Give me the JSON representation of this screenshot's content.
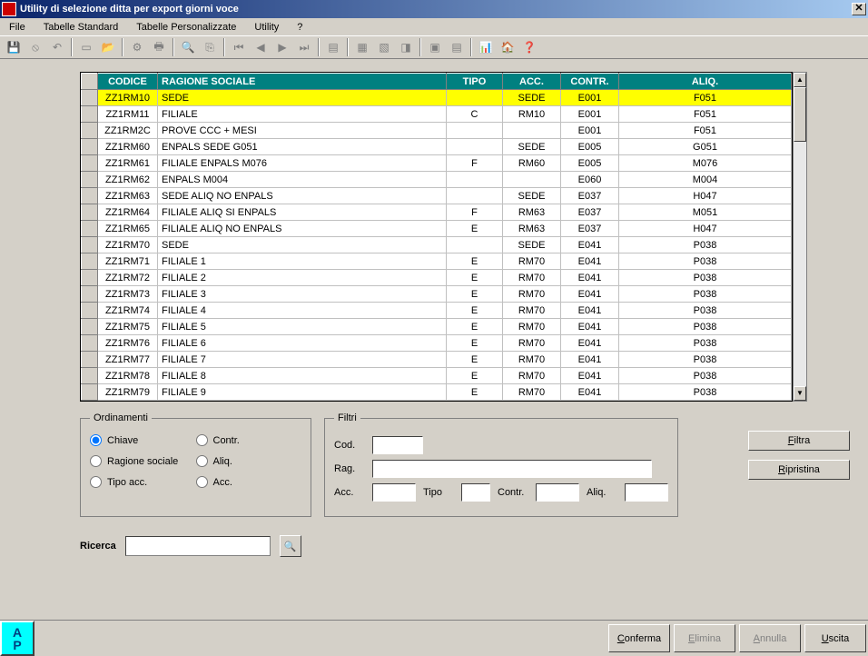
{
  "window": {
    "title": "Utility di selezione ditta per export giorni voce"
  },
  "menu": {
    "items": [
      "File",
      "Tabelle Standard",
      "Tabelle Personalizzate",
      "Utility",
      "?"
    ]
  },
  "columns": [
    "CODICE",
    "RAGIONE SOCIALE",
    "TIPO",
    "ACC.",
    "CONTR.",
    "ALIQ."
  ],
  "rows": [
    {
      "cod": "ZZ1RM10",
      "rag": "SEDE",
      "tipo": "",
      "acc": "SEDE",
      "contr": "E001",
      "aliq": "F051",
      "sel": true
    },
    {
      "cod": "ZZ1RM11",
      "rag": "FILIALE",
      "tipo": "C",
      "acc": "RM10",
      "contr": "E001",
      "aliq": "F051"
    },
    {
      "cod": "ZZ1RM2C",
      "rag": "PROVE CCC + MESI",
      "tipo": "",
      "acc": "",
      "contr": "E001",
      "aliq": "F051"
    },
    {
      "cod": "ZZ1RM60",
      "rag": "ENPALS SEDE G051",
      "tipo": "",
      "acc": "SEDE",
      "contr": "E005",
      "aliq": "G051"
    },
    {
      "cod": "ZZ1RM61",
      "rag": "FILIALE ENPALS M076",
      "tipo": "F",
      "acc": "RM60",
      "contr": "E005",
      "aliq": "M076"
    },
    {
      "cod": "ZZ1RM62",
      "rag": "ENPALS M004",
      "tipo": "",
      "acc": "",
      "contr": "E060",
      "aliq": "M004"
    },
    {
      "cod": "ZZ1RM63",
      "rag": "SEDE ALIQ NO ENPALS",
      "tipo": "",
      "acc": "SEDE",
      "contr": "E037",
      "aliq": "H047"
    },
    {
      "cod": "ZZ1RM64",
      "rag": "FILIALE ALIQ SI ENPALS",
      "tipo": "F",
      "acc": "RM63",
      "contr": "E037",
      "aliq": "M051"
    },
    {
      "cod": "ZZ1RM65",
      "rag": "FILIALE ALIQ NO ENPALS",
      "tipo": "E",
      "acc": "RM63",
      "contr": "E037",
      "aliq": "H047"
    },
    {
      "cod": "ZZ1RM70",
      "rag": "SEDE",
      "tipo": "",
      "acc": "SEDE",
      "contr": "E041",
      "aliq": "P038"
    },
    {
      "cod": "ZZ1RM71",
      "rag": "FILIALE 1",
      "tipo": "E",
      "acc": "RM70",
      "contr": "E041",
      "aliq": "P038"
    },
    {
      "cod": "ZZ1RM72",
      "rag": "FILIALE 2",
      "tipo": "E",
      "acc": "RM70",
      "contr": "E041",
      "aliq": "P038"
    },
    {
      "cod": "ZZ1RM73",
      "rag": "FILIALE 3",
      "tipo": "E",
      "acc": "RM70",
      "contr": "E041",
      "aliq": "P038"
    },
    {
      "cod": "ZZ1RM74",
      "rag": "FILIALE 4",
      "tipo": "E",
      "acc": "RM70",
      "contr": "E041",
      "aliq": "P038"
    },
    {
      "cod": "ZZ1RM75",
      "rag": "FILIALE 5",
      "tipo": "E",
      "acc": "RM70",
      "contr": "E041",
      "aliq": "P038"
    },
    {
      "cod": "ZZ1RM76",
      "rag": "FILIALE 6",
      "tipo": "E",
      "acc": "RM70",
      "contr": "E041",
      "aliq": "P038"
    },
    {
      "cod": "ZZ1RM77",
      "rag": "FILIALE 7",
      "tipo": "E",
      "acc": "RM70",
      "contr": "E041",
      "aliq": "P038"
    },
    {
      "cod": "ZZ1RM78",
      "rag": "FILIALE 8",
      "tipo": "E",
      "acc": "RM70",
      "contr": "E041",
      "aliq": "P038"
    },
    {
      "cod": "ZZ1RM79",
      "rag": "FILIALE 9",
      "tipo": "E",
      "acc": "RM70",
      "contr": "E041",
      "aliq": "P038"
    }
  ],
  "ordinamenti": {
    "legend": "Ordinamenti",
    "options": [
      "Chiave",
      "Contr.",
      "Ragione sociale",
      "Aliq.",
      "Tipo acc.",
      "Acc."
    ],
    "selected": "Chiave"
  },
  "filtri": {
    "legend": "Filtri",
    "labels": {
      "cod": "Cod.",
      "rag": "Rag.",
      "acc": "Acc.",
      "tipo": "Tipo",
      "contr": "Contr.",
      "aliq": "Aliq."
    },
    "values": {
      "cod": "",
      "rag": "",
      "acc": "",
      "tipo": "",
      "contr": "",
      "aliq": ""
    }
  },
  "buttons": {
    "filtra": "Filtra",
    "ripristina": "Ripristina",
    "ricerca_label": "Ricerca",
    "conferma": "Conferma",
    "elimina": "Elimina",
    "annulla": "Annulla",
    "uscita": "Uscita"
  },
  "ap": {
    "a": "A",
    "p": "P"
  },
  "colors": {
    "header_bg": "#008080",
    "selected_bg": "#ffff00",
    "titlebar_start": "#0a246a",
    "titlebar_end": "#a6caf0"
  }
}
